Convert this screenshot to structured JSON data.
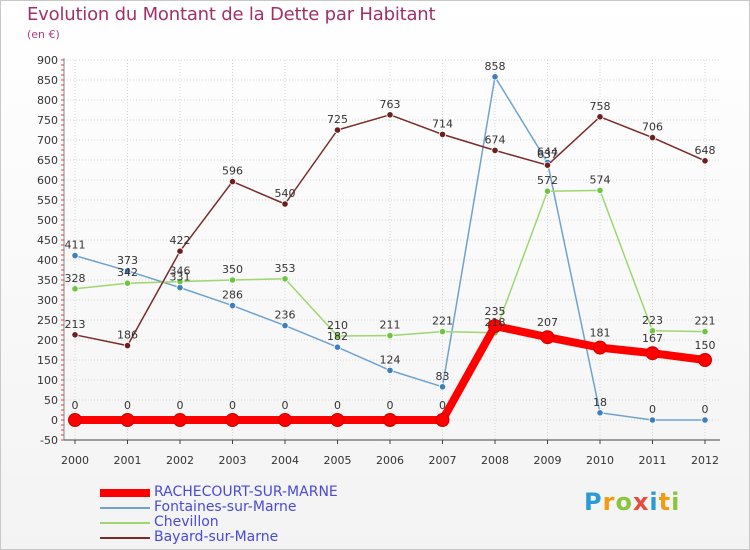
{
  "title": "Evolution du Montant de la Dette par Habitant",
  "subtitle": "(en €)",
  "logo": {
    "text": "Proxiti",
    "letters": [
      {
        "ch": "P",
        "color": "#2a9bd6"
      },
      {
        "ch": "r",
        "color": "#f39c12"
      },
      {
        "ch": "o",
        "color": "#8cc63f"
      },
      {
        "ch": "x",
        "color": "#e74c3c"
      },
      {
        "ch": "i",
        "color": "#2a9bd6"
      },
      {
        "ch": "t",
        "color": "#f39c12"
      },
      {
        "ch": "i",
        "color": "#8cc63f"
      }
    ]
  },
  "chart_data": {
    "type": "line",
    "x": [
      "2000",
      "2001",
      "2002",
      "2003",
      "2004",
      "2005",
      "2006",
      "2007",
      "2008",
      "2009",
      "2010",
      "2011",
      "2012"
    ],
    "ylim": [
      -50,
      900
    ],
    "yticks": [
      -50,
      0,
      50,
      100,
      150,
      200,
      250,
      300,
      350,
      400,
      450,
      500,
      550,
      600,
      650,
      700,
      750,
      800,
      850,
      900
    ],
    "grid": true,
    "legend_position": "bottom-left",
    "series": [
      {
        "name": "RACHECOURT-SUR-MARNE",
        "color": "#ff0000",
        "marker_color": "#ff0000",
        "emphasis": true,
        "values": [
          0,
          0,
          0,
          0,
          0,
          0,
          0,
          0,
          235,
          207,
          181,
          167,
          150
        ],
        "labels": [
          "0",
          "0",
          "0",
          "0",
          "0",
          "0",
          "0",
          "0",
          "235",
          "207",
          "181",
          "167",
          "150"
        ]
      },
      {
        "name": "Fontaines-sur-Marne",
        "color": "#6fa3cf",
        "marker_color": "#3d7fc0",
        "emphasis": false,
        "values": [
          411,
          373,
          331,
          286,
          236,
          182,
          124,
          83,
          858,
          644,
          18,
          0,
          0
        ],
        "labels": [
          "411",
          "373",
          "331",
          "286",
          "236",
          "182",
          "124",
          "83",
          "858",
          "644",
          "18",
          "0",
          "0"
        ]
      },
      {
        "name": "Chevillon",
        "color": "#9fd66f",
        "marker_color": "#6cc640",
        "emphasis": false,
        "values": [
          328,
          342,
          346,
          350,
          353,
          210,
          211,
          221,
          218,
          572,
          574,
          223,
          221
        ],
        "labels": [
          "328",
          "342",
          "346",
          "350",
          "353",
          "210",
          "211",
          "221",
          "218",
          "572",
          "574",
          "223",
          "221"
        ]
      },
      {
        "name": "Bayard-sur-Marne",
        "color": "#7a2a2a",
        "marker_color": "#6b1f1f",
        "emphasis": false,
        "values": [
          213,
          186,
          422,
          596,
          540,
          725,
          763,
          714,
          674,
          637,
          758,
          706,
          648
        ],
        "labels": [
          "213",
          "186",
          "422",
          "596",
          "540",
          "725",
          "763",
          "714",
          "674",
          "637",
          "758",
          "706",
          "648"
        ]
      }
    ]
  }
}
